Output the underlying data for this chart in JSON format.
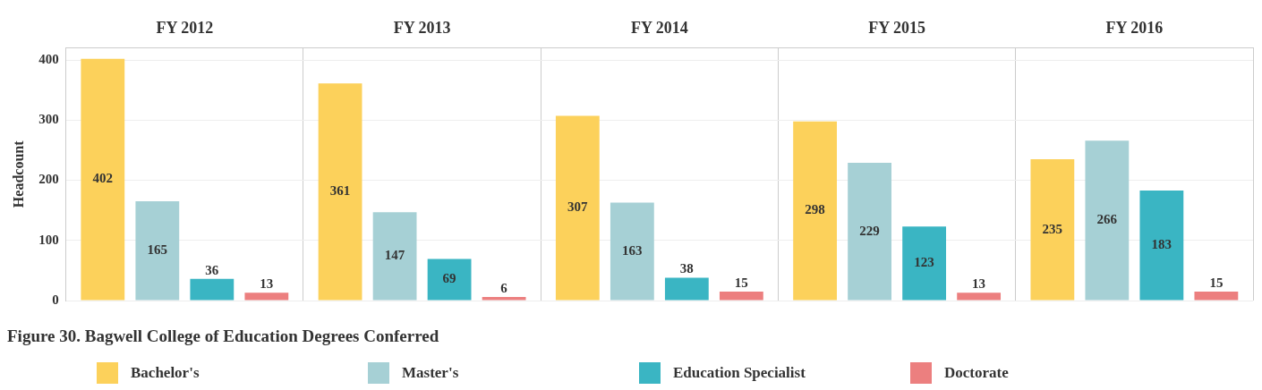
{
  "chart_data": {
    "type": "bar",
    "ylabel": "Headcount",
    "categories": [
      "FY 2012",
      "FY 2013",
      "FY 2014",
      "FY 2015",
      "FY 2016"
    ],
    "ylim": [
      0,
      420
    ],
    "yticks": [
      0,
      100,
      200,
      300,
      400
    ],
    "grid": true,
    "data_labels": true,
    "legend": "bottom",
    "annotations": [
      "Figure 30. Bagwell College of Education Degrees Conferred"
    ],
    "series": [
      {
        "name": "Bachelor's",
        "color": "#fcd15b",
        "values": [
          402,
          361,
          307,
          298,
          235
        ]
      },
      {
        "name": "Master's",
        "color": "#a6d0d5",
        "values": [
          165,
          147,
          163,
          229,
          266
        ]
      },
      {
        "name": "Education Specialist",
        "color": "#3ab5c3",
        "values": [
          36,
          69,
          38,
          123,
          183
        ]
      },
      {
        "name": "Doctorate",
        "color": "#ec7f7f",
        "values": [
          13,
          6,
          15,
          13,
          15
        ]
      }
    ]
  }
}
